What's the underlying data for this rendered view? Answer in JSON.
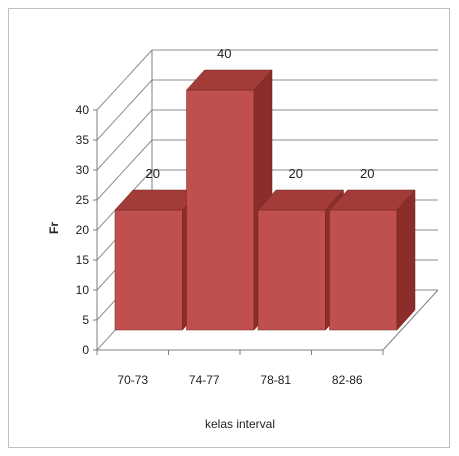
{
  "chart_data": {
    "type": "bar",
    "style": "3d-clustered-column",
    "categories": [
      "70-73",
      "74-77",
      "78-81",
      "82-86"
    ],
    "values": [
      20,
      40,
      20,
      20
    ],
    "data_labels": [
      "20",
      "40",
      "20",
      "20"
    ],
    "xlabel": "kelas interval",
    "ylabel": "Fr",
    "ylim": [
      0,
      40
    ],
    "yticks": [
      0,
      5,
      10,
      15,
      20,
      25,
      30,
      35,
      40
    ],
    "grid": true,
    "legend": "none",
    "colors": {
      "bar_front": "#c0504d",
      "bar_side": "#8b2d2a",
      "bar_top": "#a33b38",
      "grid": "#8c8c8c"
    }
  }
}
